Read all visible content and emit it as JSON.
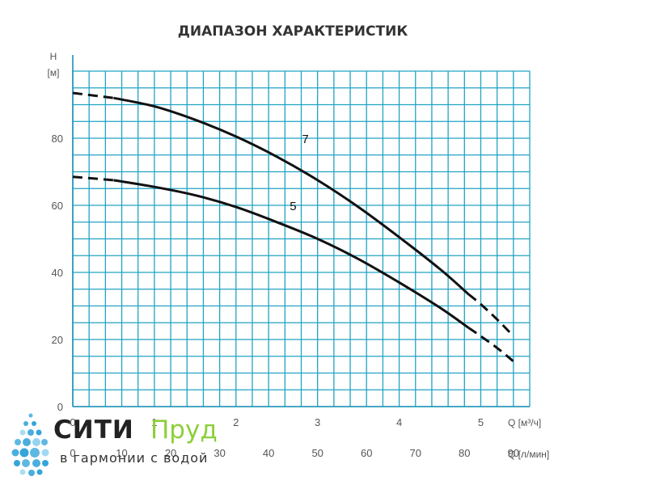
{
  "chart_data": {
    "type": "line",
    "title": "ДИАПАЗОН ХАРАКТЕРИСТИК",
    "ylabel_line1": "H",
    "ylabel_line2": "[м]",
    "xlabel_primary": "Q [м³/ч]",
    "xlabel_secondary": "Q [л/мин]",
    "ylim": [
      0,
      100
    ],
    "xlim": [
      0,
      5.6
    ],
    "y_ticks": [
      0,
      20,
      40,
      60,
      80
    ],
    "x_ticks": [
      0,
      1,
      2,
      3,
      4,
      5
    ],
    "x_secondary_ticks": [
      0,
      10,
      20,
      30,
      40,
      50,
      60,
      70,
      80,
      90
    ],
    "grid": true,
    "series": [
      {
        "name": "7",
        "color": "#111111",
        "x": [
          0,
          0.5,
          1.0,
          1.5,
          2.0,
          2.5,
          3.0,
          3.5,
          4.0,
          4.5,
          4.85,
          5.0,
          5.2,
          5.4
        ],
        "y": [
          93.5,
          92.0,
          89.5,
          85.5,
          80.5,
          74.5,
          67.5,
          59.5,
          50.5,
          41.0,
          33.5,
          30.5,
          26.0,
          21.0
        ],
        "dashed_until": 0.5,
        "dashed_from": 4.85,
        "label_at": [
          2.85,
          78.5
        ]
      },
      {
        "name": "5",
        "color": "#111111",
        "x": [
          0,
          0.5,
          1.0,
          1.5,
          2.0,
          2.5,
          3.0,
          3.5,
          4.0,
          4.5,
          4.85,
          5.0,
          5.2,
          5.4
        ],
        "y": [
          68.5,
          67.5,
          65.5,
          63.0,
          59.5,
          55.0,
          50.0,
          44.0,
          37.0,
          29.5,
          23.5,
          21.0,
          17.5,
          13.5
        ],
        "dashed_until": 0.5,
        "dashed_from": 4.85,
        "label_at": [
          2.7,
          58.5
        ]
      }
    ]
  },
  "brand": {
    "name_part1": "СИТИ",
    "name_part2": "Пруд",
    "tagline": "в гармонии с водой",
    "primary_color": "#2aa0d8",
    "accent_color": "#8ccf3a"
  }
}
